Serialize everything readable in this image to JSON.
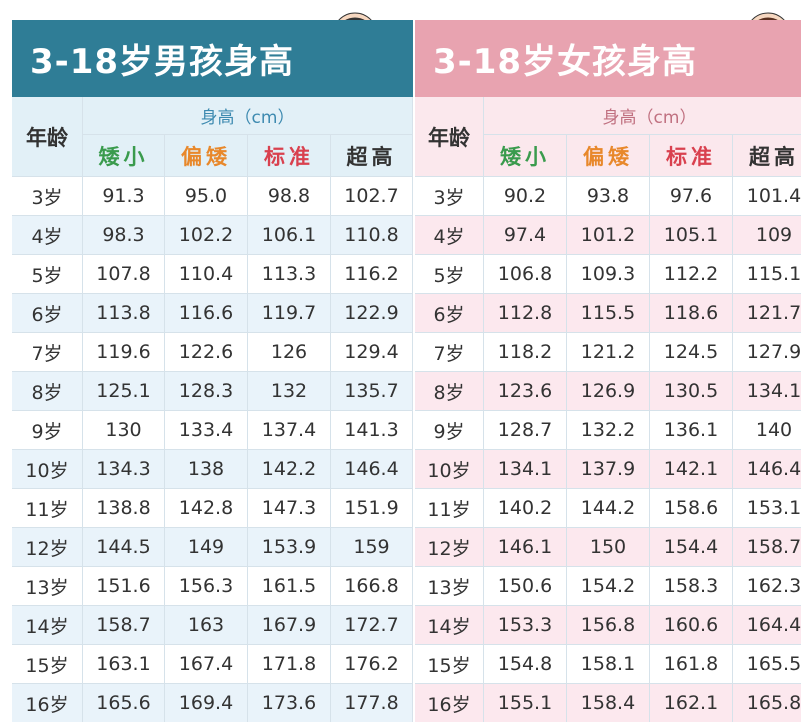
{
  "boys": {
    "title": "3-18岁男孩身高",
    "age_header": "年龄",
    "group_header": "身高（cm）",
    "columns": [
      "矮小",
      "偏矮",
      "标准",
      "超高"
    ],
    "rows": [
      [
        "3岁",
        "91.3",
        "95.0",
        "98.8",
        "102.7"
      ],
      [
        "4岁",
        "98.3",
        "102.2",
        "106.1",
        "110.8"
      ],
      [
        "5岁",
        "107.8",
        "110.4",
        "113.3",
        "116.2"
      ],
      [
        "6岁",
        "113.8",
        "116.6",
        "119.7",
        "122.9"
      ],
      [
        "7岁",
        "119.6",
        "122.6",
        "126",
        "129.4"
      ],
      [
        "8岁",
        "125.1",
        "128.3",
        "132",
        "135.7"
      ],
      [
        "9岁",
        "130",
        "133.4",
        "137.4",
        "141.3"
      ],
      [
        "10岁",
        "134.3",
        "138",
        "142.2",
        "146.4"
      ],
      [
        "11岁",
        "138.8",
        "142.8",
        "147.3",
        "151.9"
      ],
      [
        "12岁",
        "144.5",
        "149",
        "153.9",
        "159"
      ],
      [
        "13岁",
        "151.6",
        "156.3",
        "161.5",
        "166.8"
      ],
      [
        "14岁",
        "158.7",
        "163",
        "167.9",
        "172.7"
      ],
      [
        "15岁",
        "163.1",
        "167.4",
        "171.8",
        "176.2"
      ],
      [
        "16岁",
        "165.6",
        "169.4",
        "173.6",
        "177.8"
      ]
    ]
  },
  "girls": {
    "title": "3-18岁女孩身高",
    "age_header": "年龄",
    "group_header": "身高（cm）",
    "columns": [
      "矮小",
      "偏矮",
      "标准",
      "超高"
    ],
    "rows": [
      [
        "3岁",
        "90.2",
        "93.8",
        "97.6",
        "101.4"
      ],
      [
        "4岁",
        "97.4",
        "101.2",
        "105.1",
        "109"
      ],
      [
        "5岁",
        "106.8",
        "109.3",
        "112.2",
        "115.1"
      ],
      [
        "6岁",
        "112.8",
        "115.5",
        "118.6",
        "121.7"
      ],
      [
        "7岁",
        "118.2",
        "121.2",
        "124.5",
        "127.9"
      ],
      [
        "8岁",
        "123.6",
        "126.9",
        "130.5",
        "134.1"
      ],
      [
        "9岁",
        "128.7",
        "132.2",
        "136.1",
        "140"
      ],
      [
        "10岁",
        "134.1",
        "137.9",
        "142.1",
        "146.4"
      ],
      [
        "11岁",
        "140.2",
        "144.2",
        "158.6",
        "153.1"
      ],
      [
        "12岁",
        "146.1",
        "150",
        "154.4",
        "158.7"
      ],
      [
        "13岁",
        "150.6",
        "154.2",
        "158.3",
        "162.3"
      ],
      [
        "14岁",
        "153.3",
        "156.8",
        "160.6",
        "164.4"
      ],
      [
        "15岁",
        "154.8",
        "158.1",
        "161.8",
        "165.5"
      ],
      [
        "16岁",
        "155.1",
        "158.4",
        "162.1",
        "165.8"
      ]
    ]
  }
}
